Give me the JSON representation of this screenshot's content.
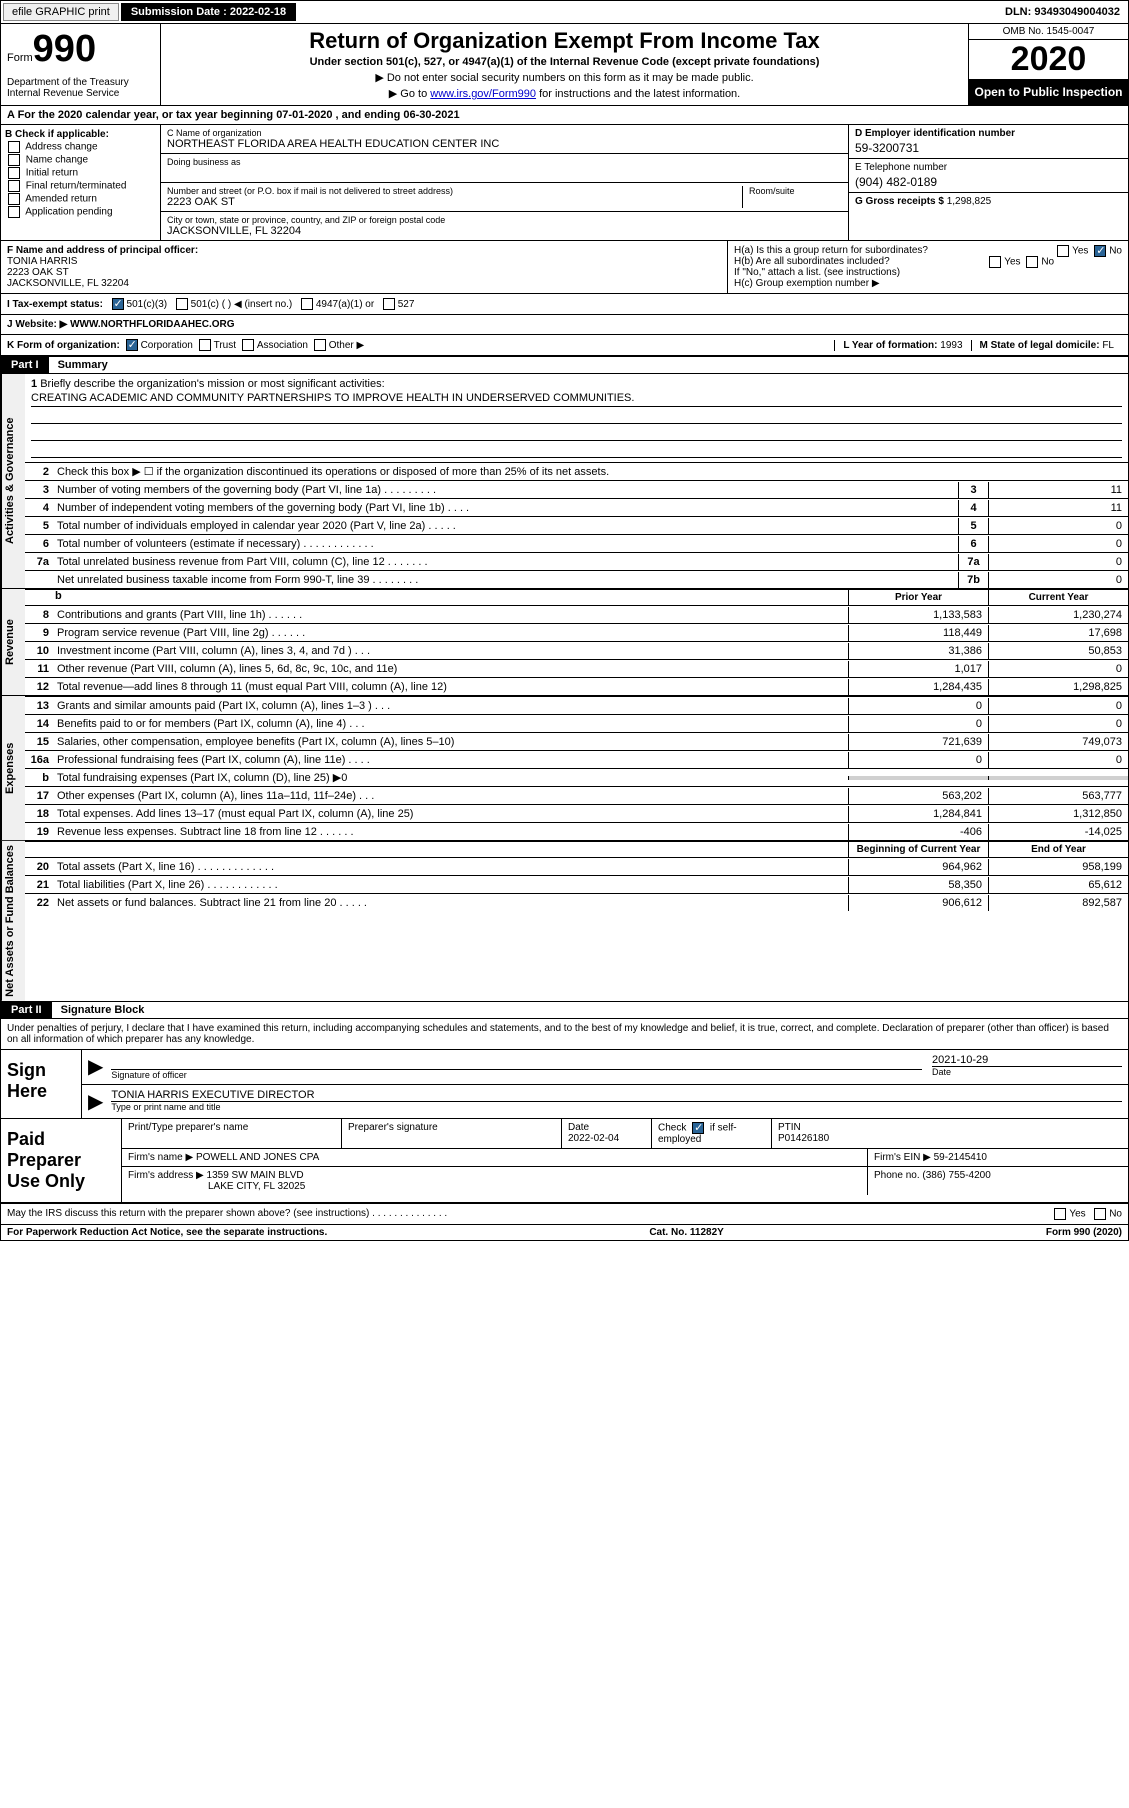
{
  "topbar": {
    "efile_label": "efile GRAPHIC print",
    "submission_label": "Submission Date : 2022-02-18",
    "dln": "DLN: 93493049004032"
  },
  "header": {
    "form_prefix": "Form",
    "form_number": "990",
    "dept": "Department of the Treasury Internal Revenue Service",
    "title": "Return of Organization Exempt From Income Tax",
    "subtitle": "Under section 501(c), 527, or 4947(a)(1) of the Internal Revenue Code (except private foundations)",
    "instr1": "▶ Do not enter social security numbers on this form as it may be made public.",
    "instr2_pre": "▶ Go to ",
    "instr2_link": "www.irs.gov/Form990",
    "instr2_post": " for instructions and the latest information.",
    "omb": "OMB No. 1545-0047",
    "year": "2020",
    "open_public": "Open to Public Inspection"
  },
  "section_a": "A  For the 2020 calendar year, or tax year beginning 07-01-2020    , and ending 06-30-2021",
  "col_b": {
    "title": "B Check if applicable:",
    "opts": [
      "Address change",
      "Name change",
      "Initial return",
      "Final return/terminated",
      "Amended return",
      "Application pending"
    ]
  },
  "col_c": {
    "name_label": "C Name of organization",
    "name": "NORTHEAST FLORIDA AREA HEALTH EDUCATION CENTER INC",
    "dba_label": "Doing business as",
    "street_label": "Number and street (or P.O. box if mail is not delivered to street address)",
    "room_label": "Room/suite",
    "street": "2223 OAK ST",
    "city_label": "City or town, state or province, country, and ZIP or foreign postal code",
    "city": "JACKSONVILLE, FL  32204"
  },
  "col_d": {
    "ein_label": "D Employer identification number",
    "ein": "59-3200731",
    "phone_label": "E Telephone number",
    "phone": "(904) 482-0189",
    "gross_label": "G Gross receipts $",
    "gross": "1,298,825"
  },
  "officer": {
    "label": "F Name and address of principal officer:",
    "name": "TONIA HARRIS",
    "street": "2223 OAK ST",
    "city": "JACKSONVILLE, FL  32204",
    "ha_label": "H(a)  Is this a group return for subordinates?",
    "hb_label": "H(b)  Are all subordinates included?",
    "h_note": "If \"No,\" attach a list. (see instructions)",
    "hc_label": "H(c)  Group exemption number ▶"
  },
  "tax_exempt": {
    "label": "I  Tax-exempt status:",
    "opt1": "501(c)(3)",
    "opt2": "501(c) (   ) ◀ (insert no.)",
    "opt3": "4947(a)(1) or",
    "opt4": "527"
  },
  "website": {
    "label": "J  Website: ▶",
    "url": "WWW.NORTHFLORIDAAHEC.ORG"
  },
  "k_row": {
    "label": "K Form of organization:",
    "opts": [
      "Corporation",
      "Trust",
      "Association",
      "Other ▶"
    ],
    "l_label": "L Year of formation:",
    "l_val": "1993",
    "m_label": "M State of legal domicile:",
    "m_val": "FL"
  },
  "part1": {
    "header": "Part I",
    "title": "Summary",
    "mission_label": "Briefly describe the organization's mission or most significant activities:",
    "mission": "CREATING ACADEMIC AND COMMUNITY PARTNERSHIPS TO IMPROVE HEALTH IN UNDERSERVED COMMUNITIES.",
    "line2": "Check this box ▶ ☐  if the organization discontinued its operations or disposed of more than 25% of its net assets.",
    "sidebar1": "Activities & Governance",
    "sidebar2": "Revenue",
    "sidebar3": "Expenses",
    "sidebar4": "Net Assets or Fund Balances",
    "lines_gov": [
      {
        "n": "3",
        "t": "Number of voting members of the governing body (Part VI, line 1a)  .   .   .   .   .   .   .   .   .",
        "b": "3",
        "v": "11"
      },
      {
        "n": "4",
        "t": "Number of independent voting members of the governing body (Part VI, line 1b)  .   .   .   .",
        "b": "4",
        "v": "11"
      },
      {
        "n": "5",
        "t": "Total number of individuals employed in calendar year 2020 (Part V, line 2a)  .   .   .   .   .",
        "b": "5",
        "v": "0"
      },
      {
        "n": "6",
        "t": "Total number of volunteers (estimate if necessary)  .   .   .   .   .   .   .   .   .   .   .   .",
        "b": "6",
        "v": "0"
      },
      {
        "n": "7a",
        "t": "Total unrelated business revenue from Part VIII, column (C), line 12  .   .   .   .   .   .   .",
        "b": "7a",
        "v": "0"
      },
      {
        "n": "",
        "t": "Net unrelated business taxable income from Form 990-T, line 39  .   .   .   .   .   .   .   .",
        "b": "7b",
        "v": "0"
      }
    ],
    "col_prior": "Prior Year",
    "col_current": "Current Year",
    "lines_rev": [
      {
        "n": "8",
        "t": "Contributions and grants (Part VIII, line 1h)  .   .   .   .   .   .",
        "p": "1,133,583",
        "c": "1,230,274"
      },
      {
        "n": "9",
        "t": "Program service revenue (Part VIII, line 2g)  .   .   .   .   .   .",
        "p": "118,449",
        "c": "17,698"
      },
      {
        "n": "10",
        "t": "Investment income (Part VIII, column (A), lines 3, 4, and 7d )  .   .   .",
        "p": "31,386",
        "c": "50,853"
      },
      {
        "n": "11",
        "t": "Other revenue (Part VIII, column (A), lines 5, 6d, 8c, 9c, 10c, and 11e)",
        "p": "1,017",
        "c": "0"
      },
      {
        "n": "12",
        "t": "Total revenue—add lines 8 through 11 (must equal Part VIII, column (A), line 12)",
        "p": "1,284,435",
        "c": "1,298,825"
      }
    ],
    "lines_exp": [
      {
        "n": "13",
        "t": "Grants and similar amounts paid (Part IX, column (A), lines 1–3 )  .   .   .",
        "p": "0",
        "c": "0"
      },
      {
        "n": "14",
        "t": "Benefits paid to or for members (Part IX, column (A), line 4)  .   .   .",
        "p": "0",
        "c": "0"
      },
      {
        "n": "15",
        "t": "Salaries, other compensation, employee benefits (Part IX, column (A), lines 5–10)",
        "p": "721,639",
        "c": "749,073"
      },
      {
        "n": "16a",
        "t": "Professional fundraising fees (Part IX, column (A), line 11e)  .   .   .   .",
        "p": "0",
        "c": "0"
      },
      {
        "n": "b",
        "t": "Total fundraising expenses (Part IX, column (D), line 25) ▶0",
        "p": "",
        "c": "",
        "gray": true
      },
      {
        "n": "17",
        "t": "Other expenses (Part IX, column (A), lines 11a–11d, 11f–24e)  .   .   .",
        "p": "563,202",
        "c": "563,777"
      },
      {
        "n": "18",
        "t": "Total expenses. Add lines 13–17 (must equal Part IX, column (A), line 25)",
        "p": "1,284,841",
        "c": "1,312,850"
      },
      {
        "n": "19",
        "t": "Revenue less expenses. Subtract line 18 from line 12  .   .   .   .   .   .",
        "p": "-406",
        "c": "-14,025"
      }
    ],
    "col_begin": "Beginning of Current Year",
    "col_end": "End of Year",
    "lines_net": [
      {
        "n": "20",
        "t": "Total assets (Part X, line 16)  .   .   .   .   .   .   .   .   .   .   .   .   .",
        "p": "964,962",
        "c": "958,199"
      },
      {
        "n": "21",
        "t": "Total liabilities (Part X, line 26)  .   .   .   .   .   .   .   .   .   .   .   .",
        "p": "58,350",
        "c": "65,612"
      },
      {
        "n": "22",
        "t": "Net assets or fund balances. Subtract line 21 from line 20  .   .   .   .   .",
        "p": "906,612",
        "c": "892,587"
      }
    ]
  },
  "part2": {
    "header": "Part II",
    "title": "Signature Block",
    "declaration": "Under penalties of perjury, I declare that I have examined this return, including accompanying schedules and statements, and to the best of my knowledge and belief, it is true, correct, and complete. Declaration of preparer (other than officer) is based on all information of which preparer has any knowledge."
  },
  "sign": {
    "label": "Sign Here",
    "sig_label": "Signature of officer",
    "date": "2021-10-29",
    "date_label": "Date",
    "name": "TONIA HARRIS  EXECUTIVE DIRECTOR",
    "name_label": "Type or print name and title"
  },
  "preparer": {
    "label": "Paid Preparer Use Only",
    "print_label": "Print/Type preparer's name",
    "sig_label": "Preparer's signature",
    "date_label": "Date",
    "date": "2022-02-04",
    "check_label": "Check ☑ if self-employed",
    "ptin_label": "PTIN",
    "ptin": "P01426180",
    "firm_name_label": "Firm's name    ▶",
    "firm_name": "POWELL AND JONES CPA",
    "firm_ein_label": "Firm's EIN ▶",
    "firm_ein": "59-2145410",
    "firm_addr_label": "Firm's address ▶",
    "firm_addr1": "1359 SW MAIN BLVD",
    "firm_addr2": "LAKE CITY, FL  32025",
    "phone_label": "Phone no.",
    "phone": "(386) 755-4200"
  },
  "footer": {
    "discuss": "May the IRS discuss this return with the preparer shown above? (see instructions)  .   .   .   .   .   .   .   .   .   .   .   .   .   .",
    "paperwork": "For Paperwork Reduction Act Notice, see the separate instructions.",
    "cat": "Cat. No. 11282Y",
    "form": "Form 990 (2020)"
  }
}
